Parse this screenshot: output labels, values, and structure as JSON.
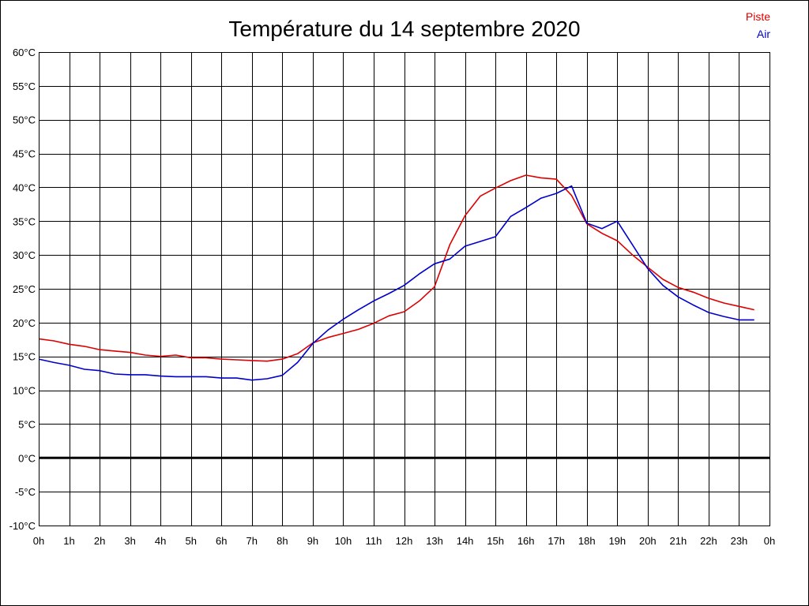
{
  "chart_data": {
    "type": "line",
    "title": "Température du 14 septembre 2020",
    "xlabel": "",
    "ylabel": "",
    "x_tick_labels": [
      "0h",
      "1h",
      "2h",
      "3h",
      "4h",
      "5h",
      "6h",
      "7h",
      "8h",
      "9h",
      "10h",
      "11h",
      "12h",
      "13h",
      "14h",
      "15h",
      "16h",
      "17h",
      "18h",
      "19h",
      "20h",
      "21h",
      "22h",
      "23h",
      "0h"
    ],
    "y_tick_labels": [
      "60°C",
      "55°C",
      "50°C",
      "45°C",
      "40°C",
      "35°C",
      "30°C",
      "25°C",
      "20°C",
      "15°C",
      "10°C",
      "5°C",
      "0°C",
      "-5°C",
      "-10°C"
    ],
    "y_ticks": [
      60,
      55,
      50,
      45,
      40,
      35,
      30,
      25,
      20,
      15,
      10,
      5,
      0,
      -5,
      -10
    ],
    "xlim": [
      0,
      24
    ],
    "ylim": [
      -10,
      60
    ],
    "grid": true,
    "zero_line": true,
    "legend_position": "top-right",
    "series": [
      {
        "name": "Piste",
        "color": "#dd0000",
        "x": [
          0,
          0.5,
          1,
          1.5,
          2,
          2.5,
          3,
          3.5,
          4,
          4.5,
          5,
          5.5,
          6,
          6.5,
          7,
          7.5,
          8,
          8.5,
          9,
          9.5,
          10,
          10.5,
          11,
          11.5,
          12,
          12.5,
          13,
          13.5,
          14,
          14.5,
          15,
          15.5,
          16,
          16.5,
          17,
          17.5,
          18,
          18.5,
          19,
          19.5,
          20,
          20.5,
          21,
          21.5,
          22,
          22.5,
          23,
          23.5
        ],
        "values": [
          17.6,
          17.3,
          16.8,
          16.5,
          16.0,
          15.8,
          15.6,
          15.2,
          15.0,
          15.2,
          14.8,
          14.8,
          14.6,
          14.5,
          14.4,
          14.3,
          14.6,
          15.4,
          17.0,
          17.8,
          18.4,
          19.0,
          19.9,
          21.0,
          21.6,
          23.2,
          25.3,
          31.5,
          35.8,
          38.7,
          39.9,
          41.0,
          41.8,
          41.4,
          41.2,
          38.8,
          34.6,
          33.2,
          32.1,
          30.0,
          28.2,
          26.4,
          25.2,
          24.5,
          23.6,
          22.9,
          22.4,
          21.9
        ]
      },
      {
        "name": "Air",
        "color": "#0000cc",
        "x": [
          0,
          0.5,
          1,
          1.5,
          2,
          2.5,
          3,
          3.5,
          4,
          4.5,
          5,
          5.5,
          6,
          6.5,
          7,
          7.5,
          8,
          8.5,
          9,
          9.5,
          10,
          10.5,
          11,
          11.5,
          12,
          12.5,
          13,
          13.5,
          14,
          14.5,
          15,
          15.5,
          16,
          16.5,
          17,
          17.5,
          18,
          18.5,
          19,
          19.5,
          20,
          20.5,
          21,
          21.5,
          22,
          22.5,
          23,
          23.5
        ],
        "values": [
          14.6,
          14.1,
          13.7,
          13.1,
          12.9,
          12.4,
          12.3,
          12.3,
          12.1,
          12.0,
          12.0,
          12.0,
          11.8,
          11.8,
          11.5,
          11.7,
          12.2,
          14.1,
          16.9,
          18.9,
          20.5,
          21.9,
          23.2,
          24.3,
          25.5,
          27.2,
          28.7,
          29.4,
          31.3,
          32.0,
          32.7,
          35.7,
          37.0,
          38.4,
          39.1,
          40.2,
          34.7,
          33.9,
          35.0,
          31.5,
          28.0,
          25.5,
          23.8,
          22.6,
          21.5,
          20.9,
          20.4,
          20.4
        ]
      }
    ]
  }
}
